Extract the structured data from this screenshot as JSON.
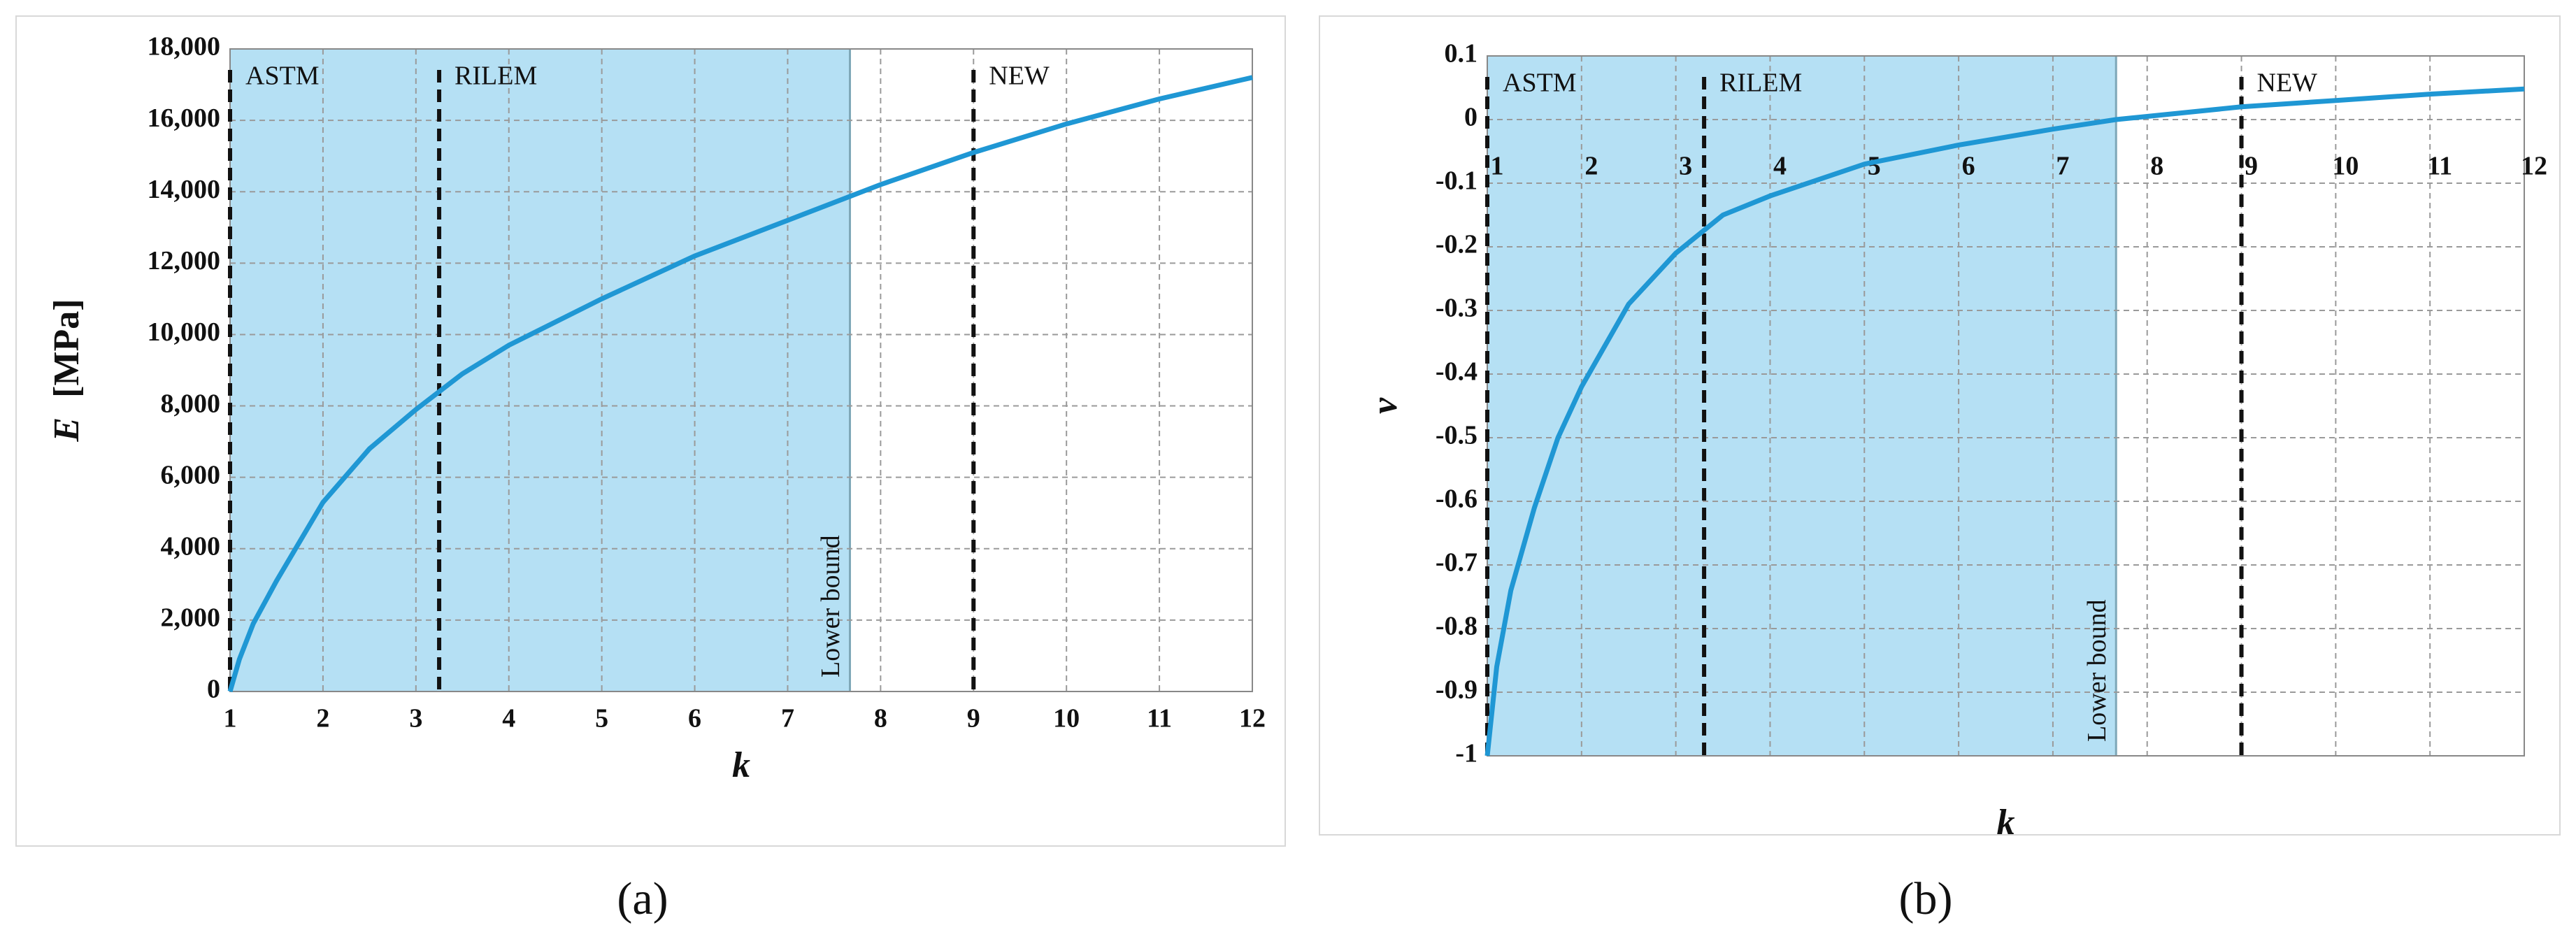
{
  "chart_data": [
    {
      "type": "line",
      "caption": "(a)",
      "xlabel": "k",
      "ylabel_symbol": "E",
      "ylabel_unit": "[MPa]",
      "xlim": [
        1,
        12
      ],
      "xticks": [
        1,
        2,
        3,
        4,
        5,
        6,
        7,
        8,
        9,
        10,
        11,
        12
      ],
      "ylim": [
        0,
        18000
      ],
      "yticks": [
        0,
        {
          "value": 2000,
          "label": "2,000"
        },
        {
          "value": 4000,
          "label": "4,000"
        },
        {
          "value": 6000,
          "label": "6,000"
        },
        {
          "value": 8000,
          "label": "8,000"
        },
        {
          "value": 10000,
          "label": "10,000"
        },
        {
          "value": 12000,
          "label": "12,000"
        },
        {
          "value": 14000,
          "label": "14,000"
        },
        {
          "value": 16000,
          "label": "16,000"
        },
        {
          "value": 18000,
          "label": "18,000"
        }
      ],
      "grid": true,
      "xaxis_position": "bottom",
      "color": "#1f97d4",
      "shade_color": "#b5e0f4",
      "x": [
        1,
        1.1,
        1.25,
        1.5,
        2,
        2.5,
        3,
        3.5,
        4,
        5,
        6,
        7,
        8,
        9,
        10,
        11,
        12
      ],
      "values": [
        0,
        900,
        1900,
        3100,
        5300,
        6800,
        7900,
        8900,
        9700,
        11000,
        12200,
        13200,
        14200,
        15100,
        15900,
        16600,
        17200
      ],
      "markers": [
        {
          "label": "ASTM",
          "x": 1
        },
        {
          "label": "RILEM",
          "x": 3.25
        },
        {
          "label": "NEW",
          "x": 9
        }
      ],
      "lower_bound": {
        "label": "Lower bound",
        "x": 7.67
      }
    },
    {
      "type": "line",
      "caption": "(b)",
      "xlabel": "k",
      "ylabel_symbol": "ν",
      "xlim": [
        1,
        12
      ],
      "xticks": [
        1,
        2,
        3,
        4,
        5,
        6,
        7,
        8,
        9,
        10,
        11,
        12
      ],
      "ylim": [
        -1,
        0.1
      ],
      "yticks": [
        0.1,
        0,
        -0.1,
        -0.2,
        -0.3,
        -0.4,
        -0.5,
        -0.6,
        -0.7,
        -0.8,
        -0.9,
        -1
      ],
      "grid": true,
      "xaxis_position": "zero",
      "color": "#1f97d4",
      "shade_color": "#b5e0f4",
      "x": [
        1,
        1.1,
        1.25,
        1.5,
        1.75,
        2,
        2.5,
        3,
        3.5,
        4,
        5,
        6,
        7,
        7.67,
        8,
        9,
        10,
        11,
        12
      ],
      "values": [
        -1,
        -0.86,
        -0.74,
        -0.61,
        -0.5,
        -0.42,
        -0.29,
        -0.21,
        -0.15,
        -0.12,
        -0.07,
        -0.04,
        -0.015,
        0,
        0.005,
        0.02,
        0.03,
        0.04,
        0.048
      ],
      "markers": [
        {
          "label": "ASTM",
          "x": 1
        },
        {
          "label": "RILEM",
          "x": 3.3
        },
        {
          "label": "NEW",
          "x": 9
        }
      ],
      "lower_bound": {
        "label": "Lower bound",
        "x": 7.67
      }
    }
  ]
}
